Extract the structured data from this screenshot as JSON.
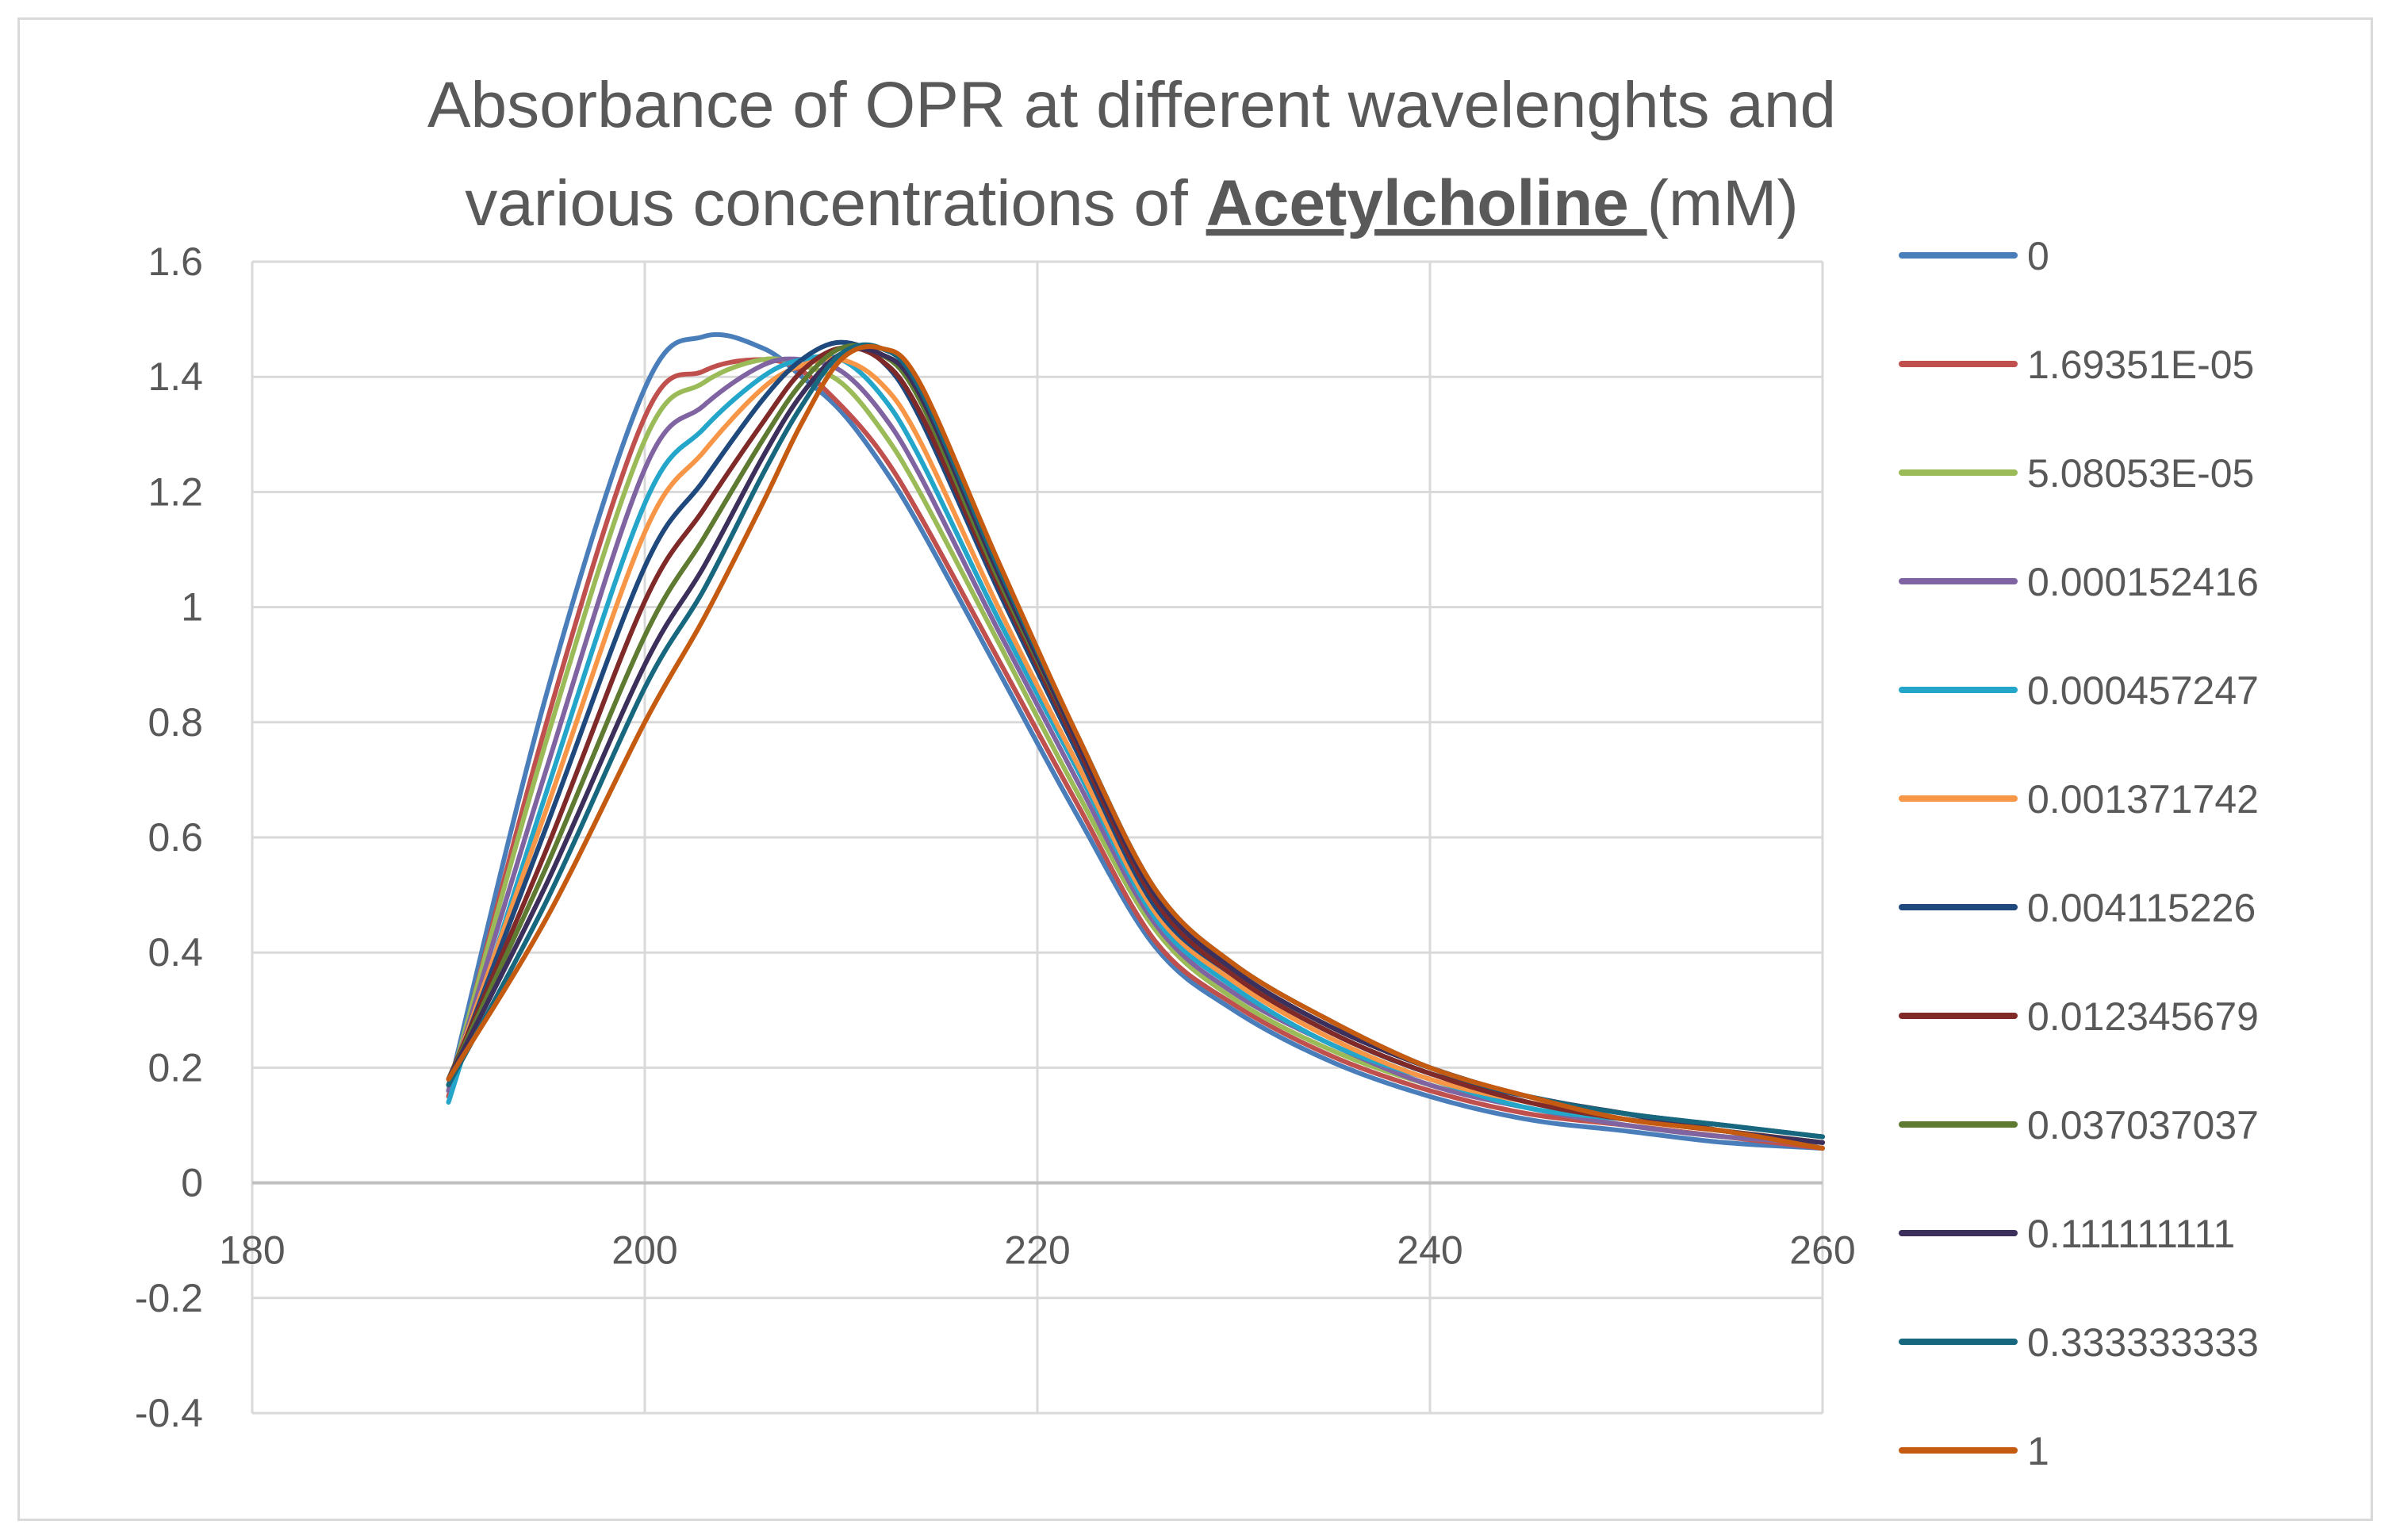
{
  "chart_data": {
    "type": "line",
    "title": {
      "line1": "Absorbance of OPR at different wavelenghts and",
      "line2_prefix": "various concentrations of ",
      "line2_bold": "Acetylcholine ",
      "line2_suffix": "(mM)"
    },
    "xlabel": "",
    "ylabel": "",
    "xlim": [
      180,
      260
    ],
    "ylim": [
      -0.4,
      1.6
    ],
    "x_ticks": [
      "180",
      "200",
      "220",
      "240",
      "260"
    ],
    "y_ticks": [
      "1.6",
      "1.4",
      "1.2",
      "1",
      "0.8",
      "0.6",
      "0.4",
      "0.2",
      "0",
      "-0.2",
      "-0.4"
    ],
    "grid": true,
    "legend_position": "right",
    "x": [
      190,
      195,
      200,
      203,
      206,
      208,
      210,
      212,
      214,
      218,
      222,
      226,
      230,
      235,
      240,
      245,
      250,
      255,
      260
    ],
    "series": [
      {
        "name": "0",
        "color": "#4a7ebb",
        "values": [
          0.16,
          0.85,
          1.38,
          1.47,
          1.45,
          1.4,
          1.34,
          1.25,
          1.14,
          0.89,
          0.64,
          0.41,
          0.3,
          0.21,
          0.15,
          0.11,
          0.09,
          0.07,
          0.06
        ]
      },
      {
        "name": "1.69351E-05",
        "color": "#c0504d",
        "values": [
          0.15,
          0.8,
          1.33,
          1.41,
          1.43,
          1.41,
          1.35,
          1.27,
          1.16,
          0.91,
          0.66,
          0.42,
          0.31,
          0.22,
          0.16,
          0.12,
          0.1,
          0.08,
          0.06
        ]
      },
      {
        "name": "5.08053E-05",
        "color": "#9bbb59",
        "values": [
          0.16,
          0.77,
          1.29,
          1.39,
          1.43,
          1.42,
          1.39,
          1.31,
          1.2,
          0.94,
          0.68,
          0.44,
          0.32,
          0.23,
          0.17,
          0.13,
          0.1,
          0.08,
          0.07
        ]
      },
      {
        "name": "0.000152416",
        "color": "#8064a2",
        "values": [
          0.16,
          0.72,
          1.24,
          1.35,
          1.42,
          1.43,
          1.41,
          1.34,
          1.23,
          0.96,
          0.7,
          0.45,
          0.33,
          0.24,
          0.17,
          0.13,
          0.1,
          0.08,
          0.07
        ]
      },
      {
        "name": "0.000457247",
        "color": "#23a6c9",
        "values": [
          0.14,
          0.68,
          1.18,
          1.31,
          1.4,
          1.43,
          1.43,
          1.37,
          1.26,
          0.98,
          0.72,
          0.46,
          0.34,
          0.24,
          0.18,
          0.13,
          0.11,
          0.09,
          0.07
        ]
      },
      {
        "name": "0.001371742",
        "color": "#f79646",
        "values": [
          0.17,
          0.65,
          1.13,
          1.27,
          1.38,
          1.42,
          1.43,
          1.39,
          1.29,
          1.0,
          0.73,
          0.47,
          0.35,
          0.25,
          0.18,
          0.14,
          0.11,
          0.09,
          0.07
        ]
      },
      {
        "name": "0.004115226",
        "color": "#1f497d",
        "values": [
          0.17,
          0.62,
          1.07,
          1.22,
          1.36,
          1.43,
          1.46,
          1.43,
          1.33,
          1.03,
          0.75,
          0.48,
          0.36,
          0.26,
          0.19,
          0.15,
          0.12,
          0.1,
          0.08
        ]
      },
      {
        "name": "0.012345679",
        "color": "#7f2a28",
        "values": [
          0.18,
          0.58,
          1.01,
          1.17,
          1.32,
          1.41,
          1.45,
          1.43,
          1.34,
          1.04,
          0.76,
          0.49,
          0.36,
          0.26,
          0.19,
          0.14,
          0.11,
          0.09,
          0.07
        ]
      },
      {
        "name": "0.037037037",
        "color": "#5e7b31",
        "values": [
          0.18,
          0.55,
          0.95,
          1.12,
          1.29,
          1.39,
          1.45,
          1.44,
          1.36,
          1.05,
          0.77,
          0.5,
          0.37,
          0.27,
          0.2,
          0.15,
          0.12,
          0.09,
          0.07
        ]
      },
      {
        "name": "0.111111111",
        "color": "#3d2f5b",
        "values": [
          0.18,
          0.52,
          0.9,
          1.07,
          1.26,
          1.37,
          1.44,
          1.44,
          1.37,
          1.06,
          0.77,
          0.5,
          0.37,
          0.27,
          0.2,
          0.15,
          0.12,
          0.09,
          0.07
        ]
      },
      {
        "name": "0.333333333",
        "color": "#17687e",
        "values": [
          0.17,
          0.49,
          0.86,
          1.03,
          1.23,
          1.35,
          1.44,
          1.45,
          1.38,
          1.07,
          0.78,
          0.51,
          0.38,
          0.28,
          0.2,
          0.15,
          0.12,
          0.1,
          0.08
        ]
      },
      {
        "name": "1",
        "color": "#c55a11",
        "values": [
          0.18,
          0.46,
          0.8,
          0.98,
          1.18,
          1.32,
          1.43,
          1.45,
          1.39,
          1.08,
          0.78,
          0.51,
          0.38,
          0.28,
          0.2,
          0.15,
          0.11,
          0.09,
          0.06
        ]
      }
    ]
  }
}
